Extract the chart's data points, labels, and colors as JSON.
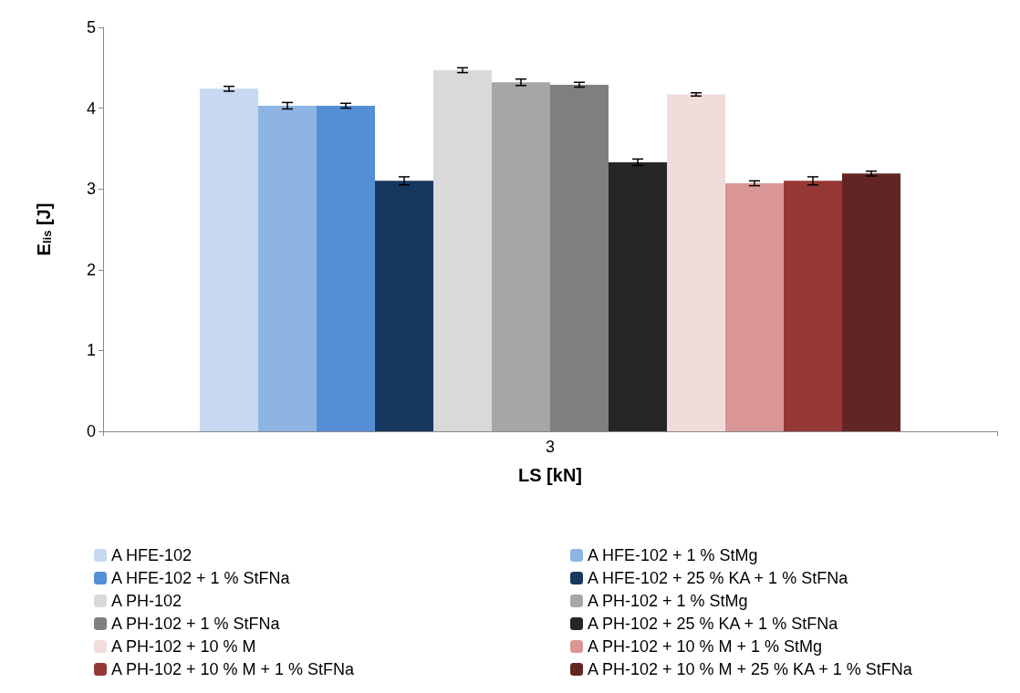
{
  "chart_data": {
    "type": "bar",
    "xlabel": "LS [kN]",
    "ylabel": "E$_{lis}$ [J]",
    "categories": [
      "3"
    ],
    "ylim": [
      0,
      5
    ],
    "yticks": [
      0,
      1,
      2,
      3,
      4,
      5
    ],
    "grid": false,
    "legend": "bottom",
    "series": [
      {
        "name": "A HFE-102",
        "color": "#c6d9f1",
        "values": [
          4.24
        ],
        "errors": [
          0.03
        ]
      },
      {
        "name": "A HFE-102 + 1 % StMg",
        "color": "#8eb4e3",
        "values": [
          4.03
        ],
        "errors": [
          0.04
        ]
      },
      {
        "name": "A HFE-102 + 1 % StFNa",
        "color": "#558ed5",
        "values": [
          4.03
        ],
        "errors": [
          0.03
        ]
      },
      {
        "name": "A HFE-102 + 25 % KA + 1 % StFNa",
        "color": "#17375e",
        "values": [
          3.1
        ],
        "errors": [
          0.05
        ]
      },
      {
        "name": "A PH-102",
        "color": "#d9d9d9",
        "values": [
          4.47
        ],
        "errors": [
          0.03
        ]
      },
      {
        "name": "A PH-102 + 1 % StMg",
        "color": "#a6a6a6",
        "values": [
          4.32
        ],
        "errors": [
          0.04
        ]
      },
      {
        "name": "A PH-102 + 1 % StFNa",
        "color": "#7f7f7f",
        "values": [
          4.29
        ],
        "errors": [
          0.03
        ]
      },
      {
        "name": "A PH-102 + 25 % KA + 1 % StFNa",
        "color": "#262626",
        "values": [
          3.33
        ],
        "errors": [
          0.04
        ]
      },
      {
        "name": "A PH-102 + 10 % M",
        "color": "#f2dcdb",
        "values": [
          4.17
        ],
        "errors": [
          0.02
        ]
      },
      {
        "name": "A PH-102 + 10 % M + 1 % StMg",
        "color": "#d99694",
        "values": [
          3.07
        ],
        "errors": [
          0.03
        ]
      },
      {
        "name": "A PH-102 + 10 % M + 1 % StFNa",
        "color": "#953735",
        "values": [
          3.1
        ],
        "errors": [
          0.05
        ]
      },
      {
        "name": "A PH-102 + 10 % M + 25 % KA + 1 % StFNa",
        "color": "#632523",
        "values": [
          3.19
        ],
        "errors": [
          0.03
        ]
      }
    ]
  }
}
